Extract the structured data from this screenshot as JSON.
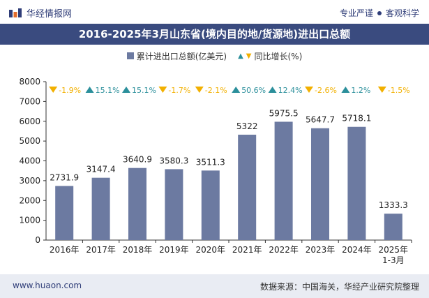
{
  "header": {
    "brand_name": "华经情报网",
    "tagline_left": "专业严谨",
    "tagline_right": "客观科学",
    "logo_icon": "huajing-logo-icon"
  },
  "title": "2016-2025年3月山东省(境内目的地/货源地)进出口总额",
  "legend": {
    "bar_label": "累计进出口总额(亿美元)",
    "growth_label": "同比增长(%)"
  },
  "colors": {
    "bar": "#6c7aa1",
    "up": "#2b8f9b",
    "down": "#f2b000",
    "title_bg": "#3a4b7f"
  },
  "footer": {
    "website": "www.huaon.com",
    "source": "数据来源：中国海关，华经产业研究院整理"
  },
  "chart_data": {
    "type": "bar",
    "title": "2016-2025年3月山东省(境内目的地/货源地)进出口总额",
    "categories": [
      "2016年",
      "2017年",
      "2018年",
      "2019年",
      "2020年",
      "2021年",
      "2022年",
      "2023年",
      "2024年",
      "2025年\n1-3月"
    ],
    "series": [
      {
        "name": "累计进出口总额(亿美元)",
        "values": [
          2731.9,
          3147.4,
          3640.9,
          3580.3,
          3511.3,
          5322,
          5975.5,
          5647.7,
          5718.1,
          1333.3
        ],
        "value_labels": [
          "2731.9",
          "3147.4",
          "3640.9",
          "3580.3",
          "3511.3",
          "5322",
          "5975.5",
          "5647.7",
          "5718.1",
          "1333.3"
        ]
      },
      {
        "name": "同比增长(%)",
        "values": [
          -1.9,
          15.1,
          15.1,
          -1.7,
          -2.1,
          50.6,
          12.4,
          -2.6,
          1.2,
          -1.5
        ],
        "value_labels": [
          "-1.9%",
          "15.1%",
          "15.1%",
          "-1.7%",
          "-2.1%",
          "50.6%",
          "12.4%",
          "-2.6%",
          "1.2%",
          "-1.5%"
        ]
      }
    ],
    "ylim": [
      0,
      8000
    ],
    "yticks": [
      0,
      1000,
      2000,
      3000,
      4000,
      5000,
      6000,
      7000,
      8000
    ],
    "grid": false,
    "legend_position": "top-center"
  }
}
